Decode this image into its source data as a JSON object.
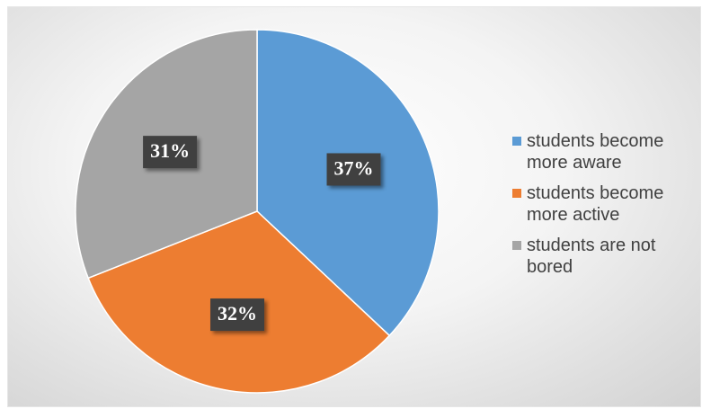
{
  "chart_data": {
    "type": "pie",
    "title": "",
    "slices": [
      {
        "label": "students become more aware",
        "value": 37,
        "display": "37%",
        "color": "#5b9bd5"
      },
      {
        "label": "students become more active",
        "value": 32,
        "display": "32%",
        "color": "#ed7d31"
      },
      {
        "label": "students are not bored",
        "value": 31,
        "display": "31%",
        "color": "#a5a5a5"
      }
    ],
    "start_angle_deg": 0,
    "direction": "clockwise",
    "legend_position": "right"
  }
}
